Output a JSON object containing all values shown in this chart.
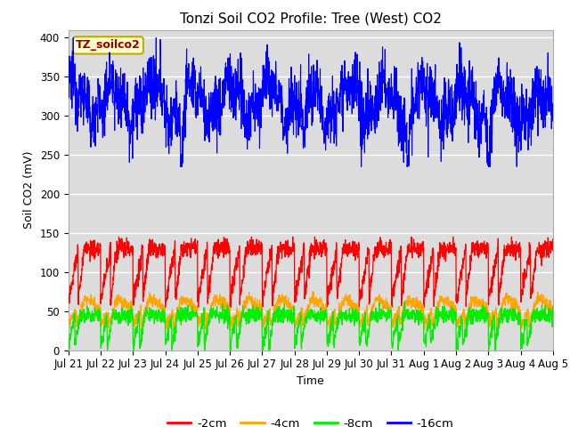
{
  "title": "Tonzi Soil CO2 Profile: Tree (West) CO2",
  "ylabel": "Soil CO2 (mV)",
  "xlabel": "Time",
  "label_box": "TZ_soilco2",
  "ylim": [
    0,
    410
  ],
  "yticks": [
    0,
    50,
    100,
    150,
    200,
    250,
    300,
    350,
    400
  ],
  "bg_color": "#dcdcdc",
  "fig_color": "#ffffff",
  "line_colors": {
    "-2cm": "#ff0000",
    "-4cm": "#ffa500",
    "-8cm": "#00ee00",
    "-16cm": "#0000ff"
  },
  "legend_labels": [
    "-2cm",
    "-4cm",
    "-8cm",
    "-16cm"
  ],
  "n_points": 2160,
  "xtick_labels": [
    "Jul 21",
    "Jul 22",
    "Jul 23",
    "Jul 24",
    "Jul 25",
    "Jul 26",
    "Jul 27",
    "Jul 28",
    "Jul 29",
    "Jul 30",
    "Jul 31",
    "Aug 1",
    "Aug 2",
    "Aug 3",
    "Aug 4",
    "Aug 5"
  ],
  "title_fontsize": 11,
  "label_fontsize": 9,
  "tick_fontsize": 8.5
}
